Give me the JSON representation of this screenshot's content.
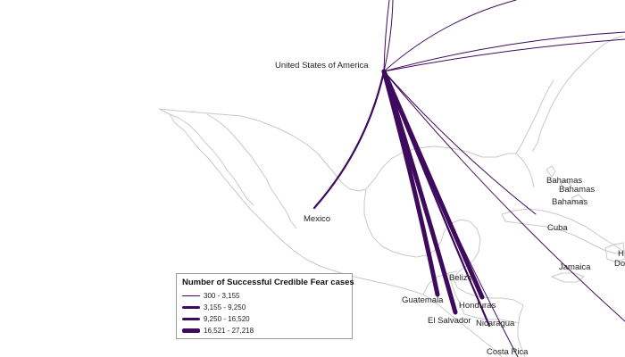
{
  "flow_color": "#3d0a5e",
  "coast_color": "#c9c9c9",
  "origin": "United States of America",
  "labels": {
    "usa": "United States of America",
    "mexico": "Mexico",
    "bahamas_1": "Bahamas",
    "bahamas_2": "Bahamas",
    "bahamas_3": "Bahamas",
    "cuba": "Cuba",
    "jamaica": "Jamaica",
    "belize": "Belize",
    "guatemala": "Guatemala",
    "honduras": "Honduras",
    "el_salvador": "El Salvador",
    "nicaragua": "Nicaragua",
    "costa_rica": "Costa Rica",
    "haiti_partial": "H",
    "dominican_partial": "Do"
  },
  "legend": {
    "title": "Number of Successful Credible Fear cases",
    "classes": [
      {
        "label": "300 - 3,155",
        "class_index": 1
      },
      {
        "label": "3,155 - 9,250",
        "class_index": 2
      },
      {
        "label": "9,250 - 16,520",
        "class_index": 3
      },
      {
        "label": "16,521 - 27,218",
        "class_index": 4
      }
    ]
  },
  "flows": [
    {
      "to": "Mexico",
      "class_index": 2
    },
    {
      "to": "Guatemala",
      "class_index": 4
    },
    {
      "to": "El Salvador",
      "class_index": 4
    },
    {
      "to": "Honduras",
      "class_index": 4
    },
    {
      "to": "Nicaragua",
      "class_index": 2
    },
    {
      "to": "Costa Rica",
      "class_index": 1
    },
    {
      "to": "Cuba",
      "class_index": 1
    },
    {
      "to": "Haiti",
      "class_index": 1
    }
  ]
}
